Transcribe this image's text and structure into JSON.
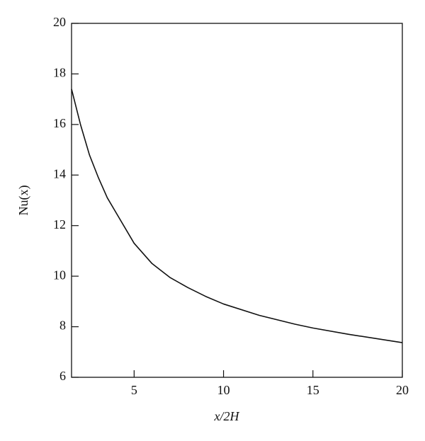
{
  "chart_data": {
    "type": "line",
    "x_label": "x/2H",
    "y_label": "Nu(x)",
    "x": [
      1.5,
      2,
      2.5,
      3,
      3.5,
      4,
      5,
      6,
      7,
      8,
      9,
      10,
      12,
      14,
      15,
      17,
      20
    ],
    "series": [
      {
        "color": "#111111",
        "values": [
          17.4,
          16.0,
          14.8,
          13.9,
          13.1,
          12.5,
          11.3,
          10.5,
          9.95,
          9.55,
          9.2,
          8.9,
          8.45,
          8.1,
          7.95,
          7.7,
          7.37
        ]
      }
    ],
    "xlim": [
      1.5,
      20
    ],
    "ylim": [
      6,
      20
    ],
    "xticks": [
      5,
      10,
      15,
      20
    ],
    "yticks": [
      6,
      8,
      10,
      12,
      14,
      16,
      18,
      20
    ],
    "grid": false
  }
}
